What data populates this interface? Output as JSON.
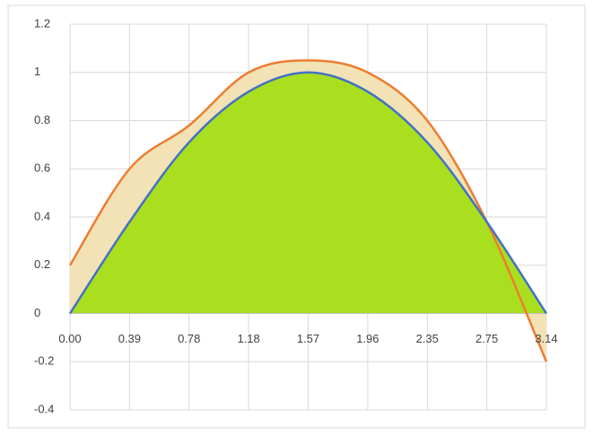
{
  "chart_data": {
    "type": "line",
    "categories": [
      "0.00",
      "0.39",
      "0.78",
      "1.18",
      "1.57",
      "1.96",
      "2.35",
      "2.75",
      "3.14"
    ],
    "series": [
      {
        "color": "#ed7d31",
        "fill": "#f2e2b6",
        "values": [
          0.2,
          0.6,
          0.78,
          1.0,
          1.05,
          1.0,
          0.8,
          0.38,
          -0.2
        ]
      },
      {
        "color": "#4472c4",
        "fill": "#a9df1e",
        "values": [
          0,
          0.38,
          0.71,
          0.92,
          1,
          0.92,
          0.71,
          0.38,
          0
        ]
      }
    ],
    "ylim": [
      -0.4,
      1.2
    ],
    "yticks": [
      -0.4,
      -0.2,
      0,
      0.2,
      0.4,
      0.6,
      0.8,
      1,
      1.2
    ],
    "grid": true
  }
}
